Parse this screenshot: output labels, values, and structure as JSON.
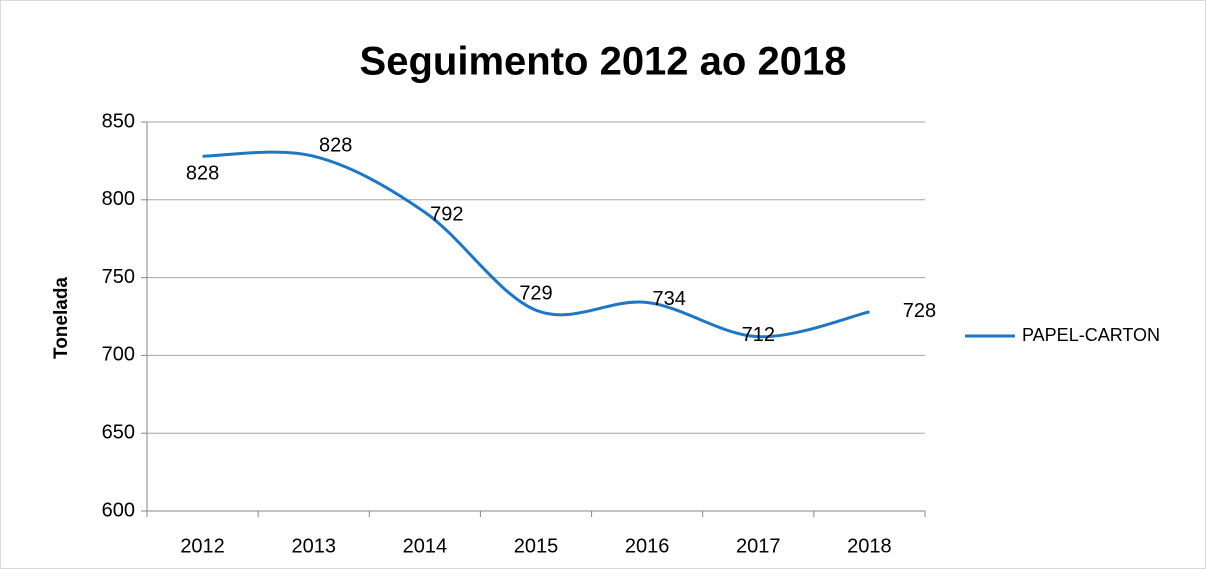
{
  "chart_data": {
    "type": "line",
    "title": "Seguimento 2012 ao 2018",
    "y_label": "Tonelada",
    "categories": [
      "2012",
      "2013",
      "2014",
      "2015",
      "2016",
      "2017",
      "2018"
    ],
    "series": [
      {
        "name": "PAPEL-CARTON",
        "color": "#1f77c4",
        "values": [
          828,
          828,
          792,
          729,
          734,
          712,
          728
        ]
      }
    ],
    "ylim": [
      600,
      850
    ],
    "yticks": [
      600,
      650,
      700,
      750,
      800,
      850
    ],
    "grid": true,
    "smooth": true,
    "legend": "right"
  }
}
